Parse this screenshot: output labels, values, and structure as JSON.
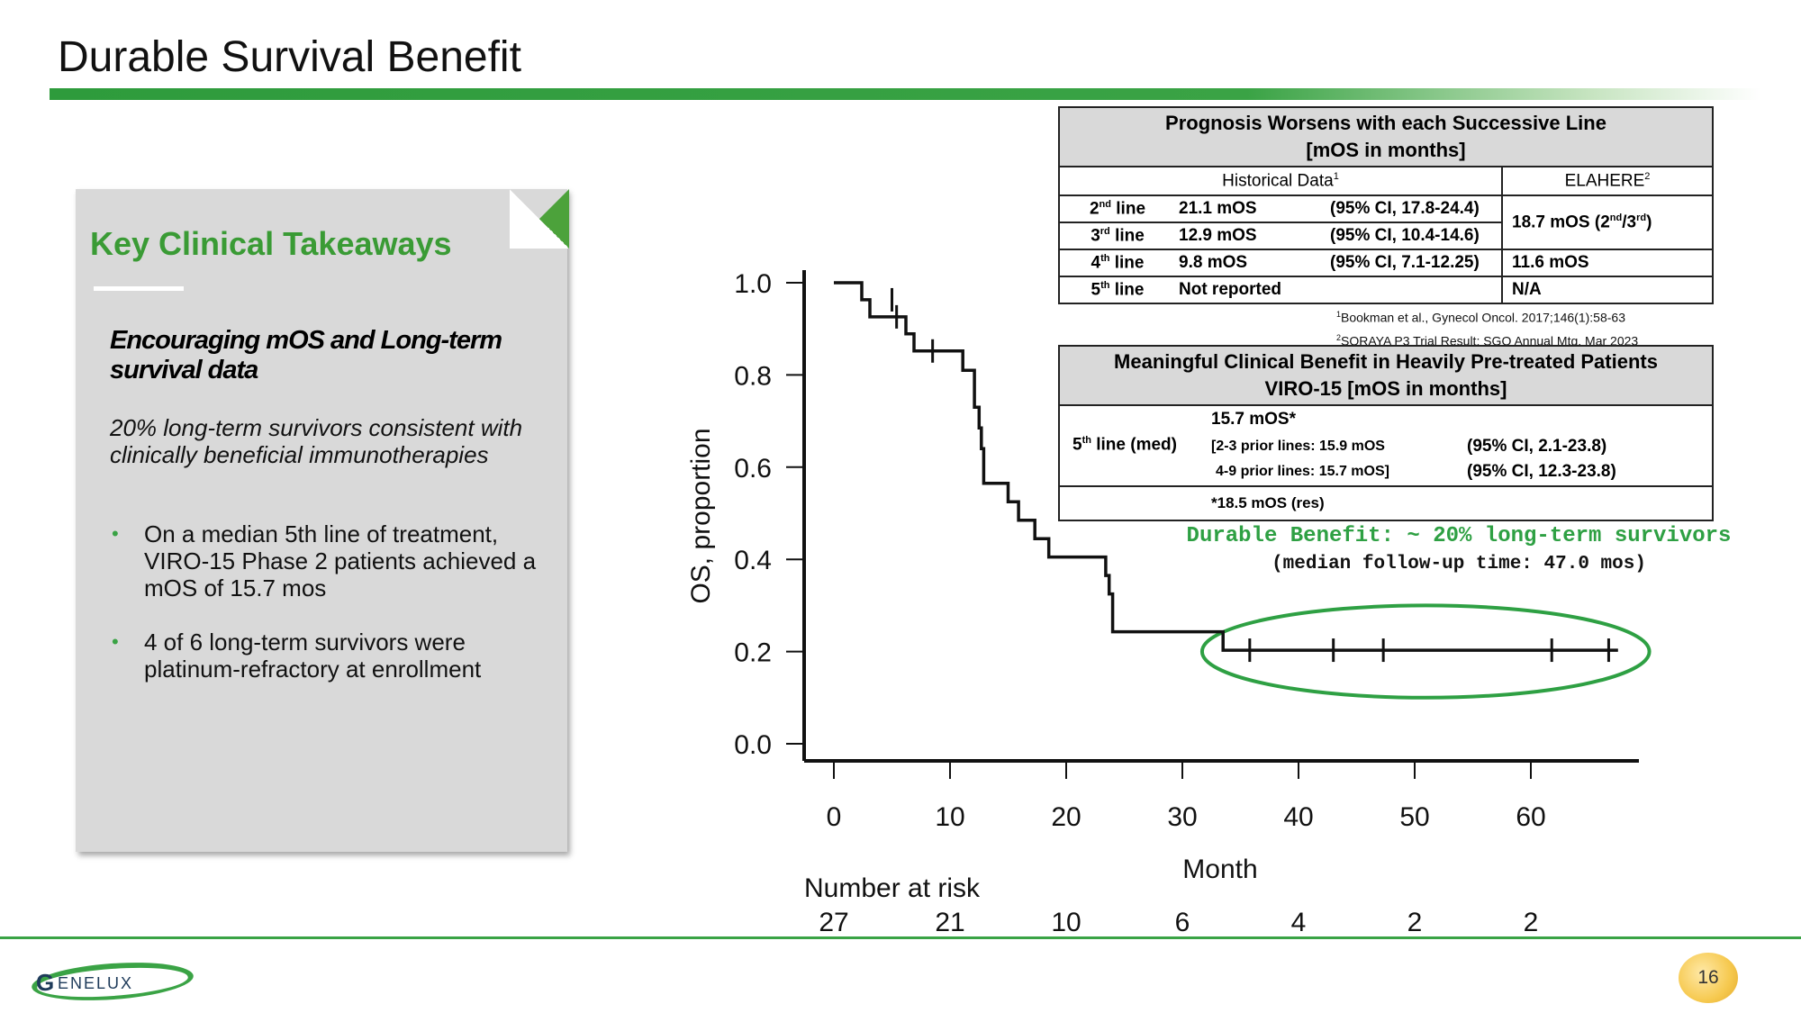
{
  "slide": {
    "title": "Durable Survival Benefit",
    "page_number": "16",
    "brand": "GENELUX",
    "brand_initial": "G",
    "brand_rest": "ENELUX"
  },
  "takeaways": {
    "heading": "Key Clinical Takeaways",
    "subheading": "Encouraging mOS and Long-term survival data",
    "italic_text": "20% long-term survivors consistent with clinically beneficial immunotherapies",
    "bullets": [
      "On a median 5th line of treatment, VIRO-15 Phase 2 patients achieved a mOS of 15.7 mos",
      "4 of 6 long-term survivors were platinum-refractory at enrollment"
    ],
    "bullet_glyph": "•"
  },
  "table1": {
    "title_line1": "Prognosis Worsens with each Successive Line",
    "title_line2": "[mOS in months]",
    "col_historical": "Historical Data",
    "col_historical_sup": "1",
    "col_elahere": "ELAHERE",
    "col_elahere_sup": "2",
    "rows": [
      {
        "line_num": "2",
        "line_sup": "nd",
        "line_word": "line",
        "mos": "21.1 mOS",
        "ci": "(95% CI, 17.8-24.4)"
      },
      {
        "line_num": "3",
        "line_sup": "rd",
        "line_word": "line",
        "mos": "12.9 mOS",
        "ci": "(95% CI, 10.4-14.6)"
      },
      {
        "line_num": "4",
        "line_sup": "th",
        "line_word": "line",
        "mos": "9.8 mOS",
        "ci": "(95% CI, 7.1-12.25)",
        "elahere": "11.6 mOS"
      },
      {
        "line_num": "5",
        "line_sup": "th",
        "line_word": "line",
        "mos": "Not reported",
        "ci": "",
        "elahere": "N/A"
      }
    ],
    "elahere_merged_pre": "18.7 mOS (2",
    "elahere_merged_sup1": "nd",
    "elahere_merged_mid": "/3",
    "elahere_merged_sup2": "rd",
    "elahere_merged_post": ")",
    "ref1_sup": "1",
    "ref1": "Bookman et al., Gynecol Oncol. 2017;146(1):58-63",
    "ref2_sup": "2",
    "ref2": "SORAYA P3 Trial Result; SGO Annual  Mtg, Mar 2023"
  },
  "table2": {
    "title_line1": "Meaningful Clinical Benefit in Heavily Pre-treated Patients",
    "title_line2": "VIRO-15 [mOS in months]",
    "line_label_num": "5",
    "line_label_sup": "th",
    "line_label_rest": " line (med)",
    "mos": "15.7 mOS*",
    "prior_a": "[2-3 prior lines: 15.9 mOS",
    "prior_b": "4-9 prior lines: 15.7 mOS]",
    "ci_a": "(95% CI, 2.1-23.8)",
    "ci_b": "(95% CI, 12.3-23.8)",
    "res_note": "*18.5 mOS (res)"
  },
  "callout": {
    "line1": "Durable Benefit: ~ 20% long-term survivors",
    "line2": "(median follow-up time: 47.0 mos)"
  },
  "chart_data": {
    "type": "line",
    "subtype": "kaplan-meier step",
    "xlabel": "Month",
    "ylabel": "OS, proportion",
    "xlim": [
      -2.5,
      69
    ],
    "ylim": [
      0,
      1.0
    ],
    "x_ticks": [
      0,
      10,
      20,
      30,
      40,
      50,
      60
    ],
    "y_ticks": [
      "0.0",
      "0.2",
      "0.4",
      "0.6",
      "0.8",
      "1.0"
    ],
    "y_tick_values": [
      0,
      0.2,
      0.4,
      0.6,
      0.8,
      1.0
    ],
    "x_tick_labels": [
      "0",
      "10",
      "20",
      "30",
      "40",
      "50",
      "60"
    ],
    "step_curve": [
      [
        0,
        1.0
      ],
      [
        2.4,
        1.0
      ],
      [
        2.4,
        0.963
      ],
      [
        3.1,
        0.963
      ],
      [
        3.1,
        0.926
      ],
      [
        6.2,
        0.926
      ],
      [
        6.2,
        0.889
      ],
      [
        6.9,
        0.889
      ],
      [
        6.9,
        0.852
      ],
      [
        11.1,
        0.852
      ],
      [
        11.1,
        0.81
      ],
      [
        12.1,
        0.81
      ],
      [
        12.1,
        0.73
      ],
      [
        12.5,
        0.73
      ],
      [
        12.5,
        0.685
      ],
      [
        12.7,
        0.685
      ],
      [
        12.7,
        0.64
      ],
      [
        12.9,
        0.64
      ],
      [
        12.9,
        0.565
      ],
      [
        15.0,
        0.565
      ],
      [
        15.0,
        0.525
      ],
      [
        15.9,
        0.525
      ],
      [
        15.9,
        0.485
      ],
      [
        17.3,
        0.485
      ],
      [
        17.3,
        0.445
      ],
      [
        18.5,
        0.445
      ],
      [
        18.5,
        0.405
      ],
      [
        23.4,
        0.405
      ],
      [
        23.4,
        0.365
      ],
      [
        23.7,
        0.365
      ],
      [
        23.7,
        0.325
      ],
      [
        24.0,
        0.325
      ],
      [
        24.0,
        0.243
      ],
      [
        33.5,
        0.243
      ],
      [
        33.5,
        0.203
      ],
      [
        67.5,
        0.203
      ]
    ],
    "censor_marks": [
      [
        5.0,
        0.963
      ],
      [
        5.4,
        0.926
      ],
      [
        8.5,
        0.852
      ],
      [
        35.8,
        0.203
      ],
      [
        43.0,
        0.203
      ],
      [
        47.3,
        0.203
      ],
      [
        61.8,
        0.203
      ],
      [
        66.7,
        0.203
      ]
    ],
    "highlight_ellipse": {
      "x_range": [
        31.7,
        70.2
      ],
      "y_range": [
        0.1,
        0.3
      ]
    },
    "risk_table": {
      "label": "Number at risk",
      "months": [
        0,
        10,
        20,
        30,
        40,
        50,
        60
      ],
      "counts": [
        "27",
        "21",
        "10",
        "6",
        "4",
        "2",
        "2"
      ]
    },
    "colors": {
      "curve": "#111111",
      "ellipse": "#2ea043"
    }
  }
}
